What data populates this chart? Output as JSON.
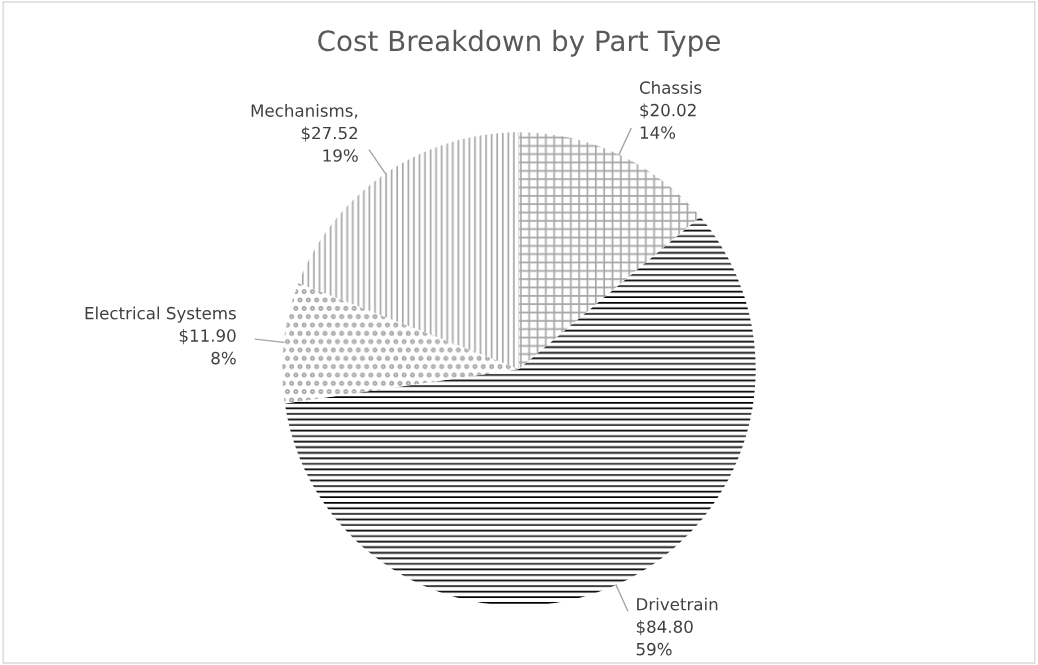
{
  "chart_data": {
    "type": "pie",
    "title": "Cost Breakdown by Part Type",
    "categories": [
      "Chassis",
      "Drivetrain",
      "Electrical Systems",
      "Mechanisms"
    ],
    "values": [
      20.02,
      84.8,
      11.9,
      27.52
    ],
    "value_labels": [
      "$20.02\n14%",
      "$84.80\n59%",
      "$11.90\n8%",
      ",\n$27.52\n19%"
    ],
    "colors": [
      "#a6a6a6",
      "#000000",
      "#a6a6a6",
      "#a6a6a6"
    ],
    "legend": false
  }
}
